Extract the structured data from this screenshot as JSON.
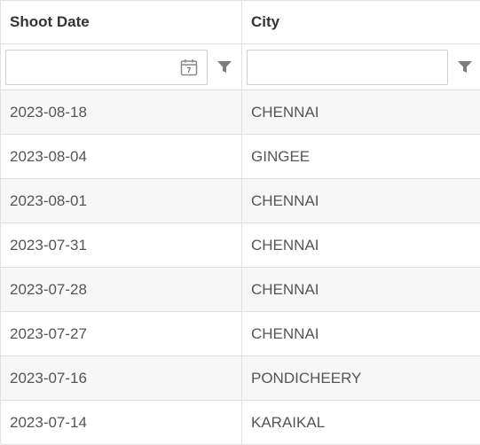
{
  "columns": {
    "shoot_date": "Shoot Date",
    "city": "City"
  },
  "filters": {
    "shoot_date_value": "",
    "city_value": "",
    "calendar_icon_day": "7"
  },
  "rows": [
    {
      "shoot_date": "2023-08-18",
      "city": "CHENNAI"
    },
    {
      "shoot_date": "2023-08-04",
      "city": "GINGEE"
    },
    {
      "shoot_date": "2023-08-01",
      "city": "CHENNAI"
    },
    {
      "shoot_date": "2023-07-31",
      "city": "CHENNAI"
    },
    {
      "shoot_date": "2023-07-28",
      "city": "CHENNAI"
    },
    {
      "shoot_date": "2023-07-27",
      "city": "CHENNAI"
    },
    {
      "shoot_date": "2023-07-16",
      "city": "PONDICHEERY"
    },
    {
      "shoot_date": "2023-07-14",
      "city": "KARAIKAL"
    }
  ]
}
